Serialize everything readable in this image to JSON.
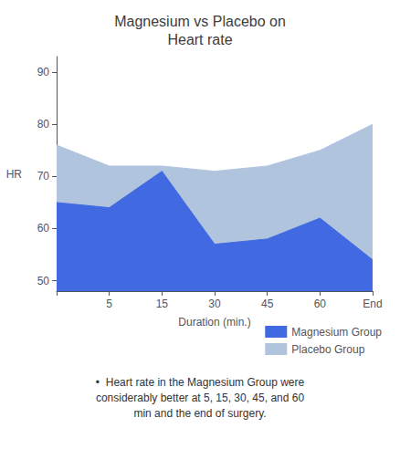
{
  "chart_data": {
    "type": "area",
    "title": "Magnesium vs Placebo on\nHeart rate",
    "xlabel": "Duration (min.)",
    "ylabel": "HR",
    "categories": [
      null,
      "5",
      "15",
      "30",
      "45",
      "60",
      "End"
    ],
    "series": [
      {
        "name": "Magnesium Group",
        "color": "#4169E1",
        "values": [
          65,
          64,
          71,
          57,
          58,
          62,
          54
        ]
      },
      {
        "name": "Placebo Group",
        "color": "#B0C4DE",
        "values": [
          76,
          72,
          72,
          71,
          72,
          75,
          80
        ]
      }
    ],
    "ylim": [
      48,
      93
    ],
    "yticks": [
      50,
      60,
      70,
      80,
      90
    ],
    "grid": false,
    "legend": "lower right",
    "annotations": [
      "•  Heart rate in the Magnesium Group were\nconsiderably better at 5, 15, 30, 45, and 60\nmin and the end of surgery."
    ]
  }
}
